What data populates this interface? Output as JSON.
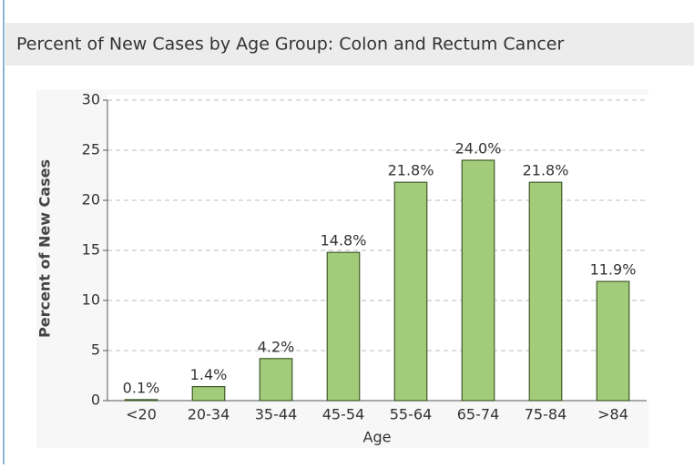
{
  "chart_data": {
    "type": "bar",
    "title": "Percent of New Cases by Age Group: Colon and Rectum Cancer",
    "x_label": "Age",
    "y_label": "Percent of New Cases",
    "categories": [
      "<20",
      "20-34",
      "35-44",
      "45-54",
      "55-64",
      "65-74",
      "75-84",
      ">84"
    ],
    "values": [
      0.1,
      1.4,
      4.2,
      14.8,
      21.8,
      24.0,
      21.8,
      11.9
    ],
    "value_labels": [
      "0.1%",
      "1.4%",
      "4.2%",
      "14.8%",
      "21.8%",
      "24.0%",
      "21.8%",
      "11.9%"
    ],
    "color": "#a3cc7a",
    "ylim": [
      0,
      30
    ],
    "yticks": [
      0,
      5,
      10,
      15,
      20,
      25,
      30
    ],
    "grid": true
  }
}
